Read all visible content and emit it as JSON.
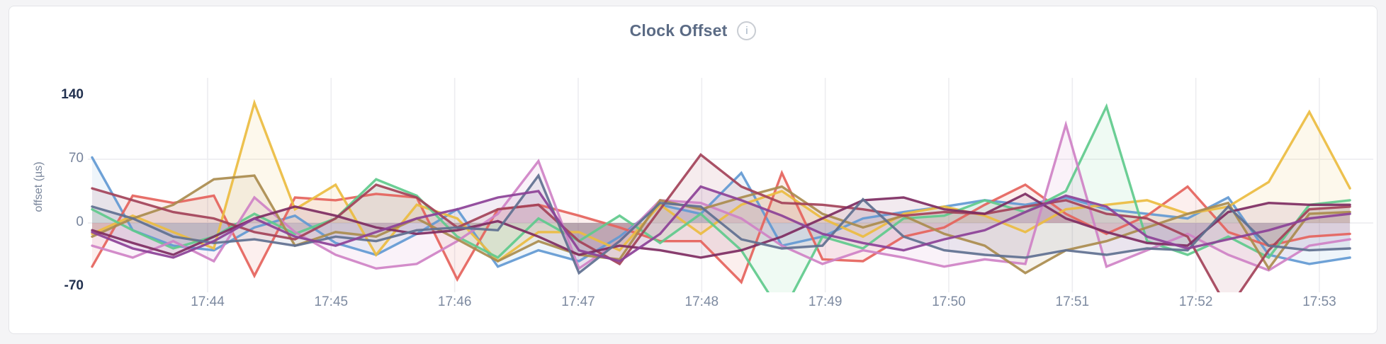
{
  "panel": {
    "title": "Clock Offset",
    "info_glyph": "i"
  },
  "chart_data": {
    "type": "line",
    "title": "Clock Offset",
    "xlabel": "",
    "ylabel": "offset (µs)",
    "ylim": [
      -70,
      140
    ],
    "grid": {
      "vertical_at_each_x_tick": true,
      "horizontal_at_values": [
        70,
        0
      ]
    },
    "legend": "none",
    "y_ticks": [
      {
        "value": 140,
        "label": "140",
        "emphasis": true
      },
      {
        "value": 70,
        "label": "70",
        "emphasis": false
      },
      {
        "value": 0,
        "label": "0",
        "emphasis": false
      },
      {
        "value": -70,
        "label": "-70",
        "emphasis": true
      }
    ],
    "x_ticks": [
      "17:44",
      "17:45",
      "17:46",
      "17:47",
      "17:48",
      "17:49",
      "17:50",
      "17:51",
      "17:52",
      "17:53"
    ],
    "x_start_time": "17:43:05",
    "x_interval_seconds": 20,
    "values_unit": "µs",
    "series": [
      {
        "name": "blue",
        "color": "#6299d2",
        "values": [
          72,
          -8,
          -25,
          -30,
          -5,
          8,
          -22,
          -35,
          -12,
          15,
          -48,
          -30,
          -42,
          -15,
          20,
          10,
          55,
          -25,
          -15,
          5,
          12,
          18,
          25,
          20,
          28,
          15,
          10,
          5,
          28,
          -35,
          -45,
          -38
        ]
      },
      {
        "name": "red",
        "color": "#e5635c",
        "values": [
          -48,
          30,
          22,
          30,
          -58,
          28,
          25,
          32,
          28,
          -62,
          15,
          20,
          8,
          -5,
          -20,
          -20,
          -65,
          55,
          -40,
          -42,
          -15,
          -5,
          20,
          42,
          10,
          -12,
          8,
          40,
          -10,
          -25,
          -15,
          -12
        ]
      },
      {
        "name": "gold",
        "color": "#ecbc40",
        "values": [
          -12,
          8,
          -10,
          -28,
          132,
          15,
          42,
          -35,
          20,
          5,
          -42,
          -10,
          -10,
          -30,
          20,
          -12,
          20,
          35,
          5,
          -15,
          10,
          18,
          8,
          -10,
          15,
          20,
          25,
          10,
          18,
          45,
          122,
          38
        ]
      },
      {
        "name": "green",
        "color": "#5fca8c",
        "values": [
          15,
          -8,
          -28,
          -15,
          10,
          -12,
          5,
          48,
          30,
          -15,
          -38,
          5,
          -20,
          8,
          -22,
          10,
          -30,
          -100,
          -15,
          -28,
          5,
          8,
          25,
          12,
          35,
          128,
          -20,
          -35,
          -15,
          -38,
          20,
          25
        ]
      },
      {
        "name": "orchid",
        "color": "#cf82c6",
        "values": [
          -25,
          -38,
          -20,
          -42,
          28,
          -10,
          -35,
          -50,
          -45,
          -20,
          10,
          68,
          -50,
          -20,
          25,
          22,
          5,
          -25,
          -45,
          -30,
          -38,
          -48,
          -40,
          -45,
          108,
          -48,
          -30,
          -12,
          -35,
          -52,
          -25,
          -18
        ]
      },
      {
        "name": "khaki",
        "color": "#aa8c4e",
        "values": [
          -15,
          5,
          20,
          48,
          52,
          -25,
          -10,
          -15,
          5,
          -18,
          -42,
          -20,
          -35,
          -40,
          25,
          15,
          28,
          40,
          10,
          -5,
          8,
          -12,
          -25,
          -55,
          -30,
          -20,
          -5,
          10,
          22,
          -50,
          10,
          12
        ]
      },
      {
        "name": "maroon",
        "color": "#a34259",
        "values": [
          38,
          25,
          12,
          5,
          -10,
          -18,
          5,
          42,
          28,
          -5,
          15,
          20,
          -20,
          -45,
          15,
          75,
          40,
          22,
          20,
          15,
          8,
          12,
          10,
          18,
          25,
          10,
          5,
          -15,
          -95,
          -30,
          15,
          18
        ]
      },
      {
        "name": "wine",
        "color": "#7e2d62",
        "values": [
          -8,
          -22,
          -35,
          -15,
          5,
          18,
          8,
          -5,
          -12,
          -8,
          2,
          -15,
          -35,
          -25,
          -30,
          -38,
          -30,
          -15,
          5,
          25,
          28,
          15,
          10,
          32,
          5,
          -10,
          -22,
          -25,
          12,
          22,
          20,
          20
        ]
      },
      {
        "name": "slate",
        "color": "#5f7090",
        "values": [
          18,
          5,
          -15,
          -22,
          -18,
          -25,
          -15,
          -20,
          -8,
          -5,
          -8,
          52,
          -55,
          -20,
          22,
          18,
          -18,
          -28,
          -25,
          26,
          -15,
          -30,
          -35,
          -38,
          -30,
          -35,
          -28,
          -30,
          18,
          -25,
          -30,
          -28
        ]
      },
      {
        "name": "violet",
        "color": "#8c4197",
        "values": [
          -10,
          -28,
          -38,
          -20,
          5,
          -15,
          -25,
          -10,
          5,
          15,
          28,
          35,
          -30,
          -42,
          -12,
          40,
          25,
          8,
          -12,
          -22,
          -30,
          -18,
          -8,
          12,
          30,
          18,
          -15,
          -28,
          -18,
          -8,
          5,
          10
        ]
      }
    ]
  }
}
